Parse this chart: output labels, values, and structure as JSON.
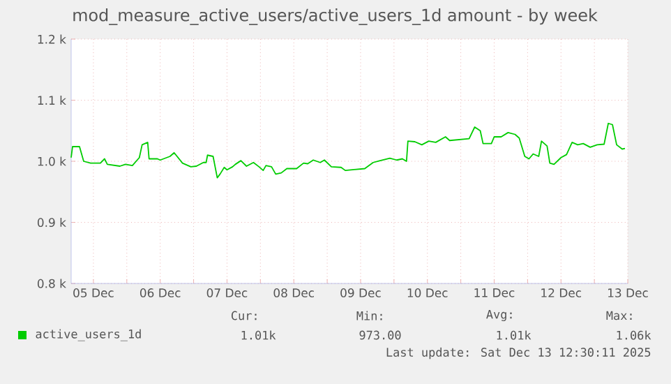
{
  "chart_data": {
    "type": "line",
    "title": "mod_measure_active_users/active_users_1d amount - by week",
    "xlim": [
      "2025-12-05T04:00",
      "2025-12-13T12:00"
    ],
    "ylim": [
      800,
      1200
    ],
    "yticks": [
      {
        "value": 800,
        "label": "0.8 k"
      },
      {
        "value": 900,
        "label": "0.9 k"
      },
      {
        "value": 1000,
        "label": "1.0 k"
      },
      {
        "value": 1100,
        "label": "1.1 k"
      },
      {
        "value": 1200,
        "label": "1.2 k"
      }
    ],
    "xticks": [
      {
        "value": "2025-12-05T12:00",
        "label": "05 Dec"
      },
      {
        "value": "2025-12-06T12:00",
        "label": "06 Dec"
      },
      {
        "value": "2025-12-07T12:00",
        "label": "07 Dec"
      },
      {
        "value": "2025-12-08T12:00",
        "label": "08 Dec"
      },
      {
        "value": "2025-12-09T12:00",
        "label": "09 Dec"
      },
      {
        "value": "2025-12-10T12:00",
        "label": "10 Dec"
      },
      {
        "value": "2025-12-11T12:00",
        "label": "11 Dec"
      },
      {
        "value": "2025-12-12T12:00",
        "label": "12 Dec"
      },
      {
        "value": "2025-12-13T12:00",
        "label": "13 Dec"
      },
      {
        "value": "2025-12-06T00:00",
        "label": null
      },
      {
        "value": "2025-12-07T00:00",
        "label": null
      },
      {
        "value": "2025-12-08T00:00",
        "label": null
      },
      {
        "value": "2025-12-09T00:00",
        "label": null
      },
      {
        "value": "2025-12-10T00:00",
        "label": null
      },
      {
        "value": "2025-12-11T00:00",
        "label": null
      },
      {
        "value": "2025-12-12T00:00",
        "label": null
      },
      {
        "value": "2025-12-13T00:00",
        "label": null
      }
    ],
    "grid": true,
    "legend": "bottom left",
    "series": [
      {
        "name": "active_users_1d",
        "color": "#00cc00",
        "x": [
          "2025-12-05T04:00",
          "2025-12-05T04:30",
          "2025-12-05T07:00",
          "2025-12-05T08:30",
          "2025-12-05T11:00",
          "2025-12-05T14:30",
          "2025-12-05T16:00",
          "2025-12-05T17:00",
          "2025-12-05T21:30",
          "2025-12-05T23:30",
          "2025-12-06T02:00",
          "2025-12-06T04:30",
          "2025-12-06T05:30",
          "2025-12-06T07:30",
          "2025-12-06T08:00",
          "2025-12-06T11:00",
          "2025-12-06T12:00",
          "2025-12-06T15:30",
          "2025-12-06T17:00",
          "2025-12-06T20:00",
          "2025-12-06T23:00",
          "2025-12-07T01:00",
          "2025-12-07T03:30",
          "2025-12-07T04:30",
          "2025-12-07T05:00",
          "2025-12-07T07:00",
          "2025-12-07T08:30",
          "2025-12-07T09:30",
          "2025-12-07T11:00",
          "2025-12-07T12:00",
          "2025-12-07T14:00",
          "2025-12-07T15:00",
          "2025-12-07T17:00",
          "2025-12-07T19:00",
          "2025-12-07T21:30",
          "2025-12-07T23:30",
          "2025-12-08T01:00",
          "2025-12-08T02:00",
          "2025-12-08T04:00",
          "2025-12-08T05:30",
          "2025-12-08T07:30",
          "2025-12-08T09:30",
          "2025-12-08T13:00",
          "2025-12-08T15:30",
          "2025-12-08T17:00",
          "2025-12-08T19:00",
          "2025-12-08T21:30",
          "2025-12-08T23:00",
          "2025-12-09T01:30",
          "2025-12-09T05:00",
          "2025-12-09T06:30",
          "2025-12-09T13:30",
          "2025-12-09T16:30",
          "2025-12-09T19:00",
          "2025-12-09T22:30",
          "2025-12-10T01:00",
          "2025-12-10T03:00",
          "2025-12-10T04:30",
          "2025-12-10T05:00",
          "2025-12-10T07:30",
          "2025-12-10T10:00",
          "2025-12-10T12:30",
          "2025-12-10T15:00",
          "2025-12-10T18:30",
          "2025-12-10T20:00",
          "2025-12-11T03:00",
          "2025-12-11T05:00",
          "2025-12-11T07:00",
          "2025-12-11T08:00",
          "2025-12-11T11:00",
          "2025-12-11T12:00",
          "2025-12-11T14:30",
          "2025-12-11T17:00",
          "2025-12-11T19:30",
          "2025-12-11T21:00",
          "2025-12-11T23:00",
          "2025-12-12T00:30",
          "2025-12-12T02:00",
          "2025-12-12T04:00",
          "2025-12-12T05:00",
          "2025-12-12T07:00",
          "2025-12-12T08:00",
          "2025-12-12T09:30",
          "2025-12-12T12:00",
          "2025-12-12T14:00",
          "2025-12-12T16:00",
          "2025-12-12T18:00",
          "2025-12-12T20:00",
          "2025-12-12T22:30",
          "2025-12-13T01:00",
          "2025-12-13T03:30",
          "2025-12-13T05:00",
          "2025-12-13T06:30",
          "2025-12-13T08:00",
          "2025-12-13T10:00",
          "2025-12-13T11:00"
        ],
        "values": [
          1006,
          1024,
          1024,
          1000,
          997,
          997,
          1004,
          995,
          992,
          995,
          993,
          1006,
          1027,
          1031,
          1004,
          1004,
          1002,
          1008,
          1014,
          997,
          991,
          992,
          998,
          998,
          1010,
          1008,
          973,
          979,
          990,
          986,
          991,
          995,
          1001,
          992,
          998,
          991,
          985,
          993,
          991,
          979,
          981,
          988,
          988,
          997,
          996,
          1002,
          998,
          1002,
          991,
          990,
          985,
          988,
          998,
          1001,
          1005,
          1002,
          1004,
          1000,
          1033,
          1032,
          1027,
          1033,
          1031,
          1040,
          1034,
          1037,
          1056,
          1050,
          1029,
          1029,
          1040,
          1040,
          1047,
          1044,
          1038,
          1008,
          1004,
          1012,
          1008,
          1033,
          1025,
          997,
          995,
          1006,
          1011,
          1031,
          1027,
          1029,
          1023,
          1027,
          1028,
          1062,
          1060,
          1027,
          1020,
          1021
        ]
      }
    ],
    "annotations": [
      "Cur:",
      "Min:",
      "Avg:",
      "Max:",
      "1.01k",
      "973.00",
      "1.01k",
      "1.06k",
      "Last update: Sat Dec 13 12:30:11 2025"
    ]
  }
}
